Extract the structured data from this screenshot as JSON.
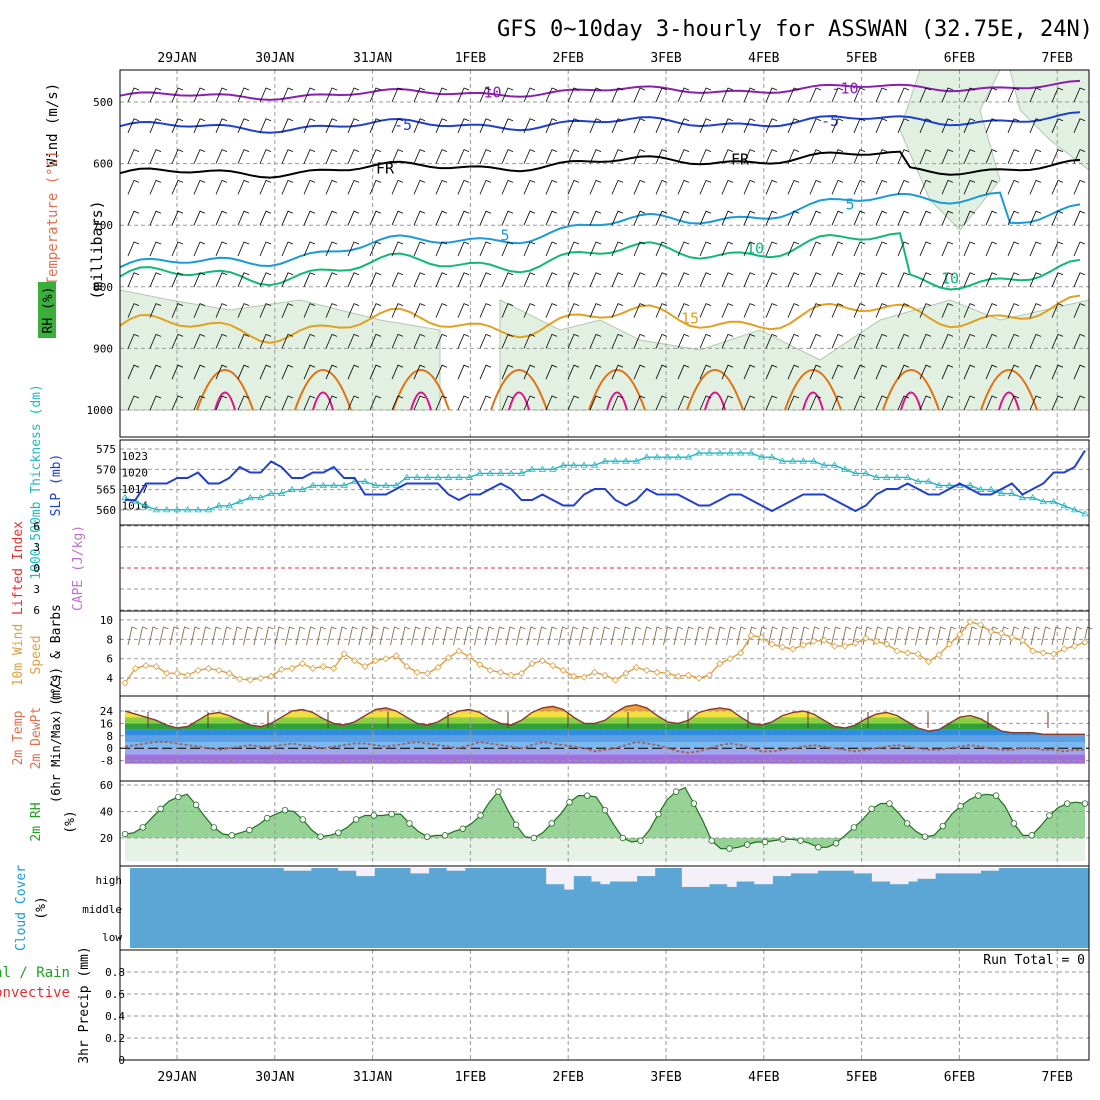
{
  "title": "GFS 0~10day 3-hourly for ASSWAN (32.75E, 24N)",
  "date_labels": [
    "29JAN",
    "30JAN",
    "31JAN",
    "1FEB",
    "2FEB",
    "3FEB",
    "4FEB",
    "5FEB",
    "6FEB",
    "7FEB"
  ],
  "colors": {
    "t_minus10": "#8a1fb0",
    "t_minus5": "#1f3fd0",
    "t_fr": "#000000",
    "t_5": "#1a9ad8",
    "t_10": "#10b878",
    "t_15": "#e0a020",
    "t_20": "#e07010",
    "t_25": "#e0108a",
    "rh_fill": "#e2f0e2",
    "slp": "#1f3fd0",
    "thickness": "#20b8c8",
    "lifted_index": "#e03030",
    "cape": "#c070d0",
    "wind_speed": "#e0a040",
    "wind_barb": "#8a6a4a",
    "temp_fill": "#e0a020",
    "dewpoint": "#a06060",
    "rh_line": "#20a020",
    "cloud": "#5ba6d4",
    "precip_total": "#20a020",
    "precip_conv": "#e03030"
  },
  "panels": {
    "upper": {
      "ylabel_main": "(millibars)",
      "ylabel_wind": "Wind (m/s)",
      "ylabel_temp": "Temperature (°C)",
      "ylabel_rh": "RH (%)",
      "contour_labels": {
        "minus10": "-10",
        "minus5": "-5",
        "fr": "FR",
        "plus5": "5",
        "plus10": "10",
        "plus15": "15"
      },
      "yticks": [
        "500",
        "600",
        "700",
        "800",
        "900",
        "1000"
      ]
    },
    "slp": {
      "ylabel_thick": "1000-500mb Thickness (dm)",
      "ylabel_slp": "SLP (mb)",
      "left_ticks": [
        "575",
        "570",
        "565",
        "560"
      ],
      "right_ticks": [
        "1023",
        "1020",
        "1017",
        "1014"
      ]
    },
    "cape": {
      "ylabel_li": "Lifted Index",
      "ylabel_cape": "CAPE (J/kg)",
      "ticks": [
        "6",
        "3",
        "0",
        "3",
        "6"
      ]
    },
    "wind10": {
      "ylabel_a": "10m Wind",
      "ylabel_b": "Speed",
      "ylabel_c": "(m/s) & Barbs",
      "ticks": [
        "10",
        "8",
        "6",
        "4"
      ]
    },
    "temp": {
      "ylabel_a": "2m Temp",
      "ylabel_b": "2m DewPt",
      "ylabel_c": "(6hr Min/Max) (°C)",
      "ticks": [
        "24",
        "16",
        "8",
        "0",
        "-8"
      ]
    },
    "rh": {
      "ylabel_a": "2m RH",
      "ylabel_b": "(%)",
      "ticks": [
        "60",
        "40",
        "20"
      ]
    },
    "cloud": {
      "ylabel_a": "Cloud Cover",
      "ylabel_b": "(%)",
      "levels": [
        "high",
        "middle",
        "low"
      ]
    },
    "precip": {
      "ylabel_total": "Total / Rain",
      "ylabel_conv": "Convective",
      "ylabel_mm": "3hr Precip (mm)",
      "run_total": "Run Total = 0",
      "ticks": [
        "0.8",
        "0.6",
        "0.4",
        "0.2",
        "0"
      ]
    }
  },
  "chart_data": [
    {
      "type": "line",
      "title": "SLP (mb) and 1000-500mb Thickness (dm)",
      "series": [
        {
          "name": "SLP (mb)",
          "values": [
            1015,
            1015,
            1018,
            1018,
            1018,
            1019,
            1019,
            1020,
            1018,
            1018,
            1019,
            1021,
            1020,
            1020,
            1022,
            1021,
            1019,
            1019,
            1020,
            1020,
            1021,
            1019,
            1019,
            1016,
            1016,
            1016,
            1017,
            1018,
            1018,
            1018,
            1018,
            1016,
            1015,
            1016,
            1016,
            1017,
            1018,
            1017,
            1015,
            1015,
            1016,
            1015,
            1014,
            1014,
            1016,
            1017,
            1017,
            1015,
            1014,
            1015,
            1017,
            1016,
            1016,
            1016,
            1015,
            1014,
            1014,
            1015,
            1016,
            1016,
            1015,
            1014,
            1013,
            1014,
            1015,
            1016,
            1016,
            1016,
            1015,
            1014,
            1013,
            1014,
            1016,
            1017,
            1017,
            1018,
            1017,
            1016,
            1016,
            1017,
            1018,
            1017,
            1016,
            1016,
            1017,
            1018,
            1016,
            1017,
            1018,
            1020,
            1020,
            1021,
            1024
          ]
        },
        {
          "name": "1000-500mb Thickness (dm)",
          "values": [
            563,
            562,
            561,
            560,
            560,
            560,
            560,
            560,
            560,
            561,
            561,
            562,
            563,
            563,
            564,
            564,
            565,
            565,
            566,
            566,
            566,
            566,
            567,
            567,
            566,
            566,
            566,
            568,
            568,
            568,
            568,
            568,
            568,
            568,
            569,
            569,
            569,
            569,
            569,
            570,
            570,
            570,
            571,
            571,
            571,
            571,
            572,
            572,
            572,
            572,
            573,
            573,
            573,
            573,
            573,
            574,
            574,
            574,
            574,
            574,
            574,
            573,
            573,
            572,
            572,
            572,
            572,
            571,
            571,
            570,
            569,
            569,
            568,
            568,
            568,
            568,
            567,
            567,
            566,
            566,
            566,
            566,
            565,
            565,
            564,
            564,
            563,
            563,
            562,
            562,
            561,
            560,
            559
          ]
        }
      ],
      "left_range": [
        557,
        576
      ],
      "right_range": [
        1011,
        1025
      ]
    },
    {
      "type": "line",
      "title": "Lifted Index / CAPE",
      "series": [
        {
          "name": "Lifted Index",
          "values": []
        }
      ],
      "ylim": [
        -6,
        6
      ]
    },
    {
      "type": "line",
      "title": "10m Wind Speed (m/s)",
      "series": [
        {
          "name": "10m Wind Speed (m/s)",
          "values": [
            3.5,
            5,
            5.3,
            5.2,
            4.5,
            4.5,
            4.3,
            4.8,
            5,
            4.8,
            4.5,
            3.9,
            3.8,
            4,
            4.2,
            4.9,
            5,
            5.5,
            5,
            5.2,
            5,
            6.5,
            5.8,
            5.2,
            5.8,
            6,
            6.3,
            5.2,
            4.6,
            4.5,
            5.1,
            6.1,
            6.8,
            6.2,
            5.4,
            4.8,
            4.6,
            4.3,
            4.5,
            5.5,
            5.8,
            5.3,
            4.8,
            4.2,
            4.1,
            4.6,
            4.3,
            3.8,
            4.5,
            5.1,
            4.8,
            4.6,
            4.5,
            4.2,
            4.3,
            4,
            4.3,
            5.5,
            6,
            6.6,
            8.4,
            8.2,
            7.5,
            7.2,
            7,
            7.4,
            7.8,
            7.9,
            7.3,
            7.3,
            7.6,
            8.1,
            7.8,
            7.5,
            6.8,
            6.6,
            6.5,
            5.7,
            6.4,
            7.5,
            8.5,
            9.8,
            9.5,
            8.8,
            8.6,
            8.2,
            7.9,
            6.8,
            6.6,
            6.5,
            7,
            7.3,
            7.7
          ]
        }
      ],
      "ylim": [
        3,
        11
      ]
    },
    {
      "type": "area",
      "title": "2m Temp / 2m DewPt (°C)",
      "series": [
        {
          "name": "2m Temp (°C)",
          "values": [
            24,
            22,
            20,
            18,
            15,
            13,
            14,
            18,
            22,
            23,
            21,
            18,
            15,
            14,
            16,
            20,
            24,
            25,
            23,
            19,
            16,
            15,
            17,
            21,
            25,
            26,
            24,
            20,
            16,
            15,
            17,
            21,
            24,
            25,
            23,
            19,
            16,
            15,
            18,
            23,
            26,
            27,
            25,
            20,
            16,
            16,
            18,
            23,
            27,
            28,
            26,
            21,
            17,
            16,
            18,
            23,
            25,
            26,
            25,
            20,
            16,
            15,
            17,
            21,
            23,
            24,
            22,
            18,
            14,
            13,
            15,
            19,
            22,
            23,
            21,
            17,
            13,
            11,
            12,
            16,
            20,
            21,
            19,
            15,
            11,
            10,
            10,
            10,
            9,
            9,
            9,
            9,
            9
          ]
        },
        {
          "name": "2m DewPt (°C)",
          "values": [
            1,
            2,
            3,
            4,
            4,
            3,
            2,
            1,
            0,
            -1,
            0,
            1,
            2,
            1,
            1,
            2,
            3,
            2,
            1,
            0,
            1,
            2,
            3,
            3,
            2,
            1,
            2,
            3,
            4,
            3,
            2,
            1,
            0,
            2,
            4,
            3,
            2,
            1,
            0,
            2,
            4,
            3,
            2,
            1,
            0,
            -2,
            -1,
            0,
            2,
            4,
            3,
            2,
            0,
            -2,
            -3,
            -2,
            0,
            2,
            3,
            2,
            0,
            -2,
            -2,
            -1,
            0,
            1,
            2,
            1,
            0,
            -1,
            -2,
            -1,
            0,
            1,
            2,
            1,
            0,
            -1,
            -1,
            0,
            1,
            2,
            1,
            0,
            -1,
            -1,
            0,
            0,
            -1,
            -1,
            -2,
            -1,
            -1
          ]
        }
      ],
      "ylim": [
        -10,
        30
      ]
    },
    {
      "type": "area",
      "title": "2m RH (%)",
      "series": [
        {
          "name": "2m RH (%)",
          "values": [
            23,
            24,
            28,
            35,
            42,
            48,
            51,
            53,
            45,
            36,
            28,
            23,
            22,
            24,
            26,
            30,
            35,
            38,
            41,
            40,
            34,
            26,
            21,
            22,
            24,
            28,
            34,
            37,
            37,
            37,
            38,
            38,
            31,
            25,
            21,
            22,
            22,
            25,
            27,
            31,
            37,
            47,
            55,
            42,
            30,
            21,
            20,
            24,
            31,
            38,
            47,
            52,
            52,
            51,
            41,
            30,
            20,
            17,
            18,
            26,
            38,
            49,
            55,
            58,
            46,
            33,
            18,
            12,
            12,
            13,
            15,
            17,
            17,
            18,
            19,
            19,
            18,
            16,
            13,
            13,
            16,
            22,
            28,
            34,
            42,
            46,
            46,
            39,
            31,
            25,
            21,
            22,
            29,
            38,
            44,
            49,
            52,
            53,
            52,
            44,
            31,
            22,
            22,
            29,
            37,
            43,
            46,
            47,
            46
          ]
        }
      ],
      "ylim": [
        5,
        62
      ]
    },
    {
      "type": "bar",
      "title": "Cloud Cover (%) - high level",
      "series": [
        {
          "name": "high",
          "values": [
            0,
            0,
            0,
            0,
            0,
            0,
            0,
            0,
            0,
            0,
            0,
            0,
            0,
            0,
            0,
            0,
            0,
            1,
            1,
            1,
            0,
            0,
            0,
            1,
            1,
            3,
            3,
            0,
            0,
            0,
            0,
            2,
            2,
            0,
            0,
            1,
            1,
            0,
            0,
            0,
            0,
            0,
            0,
            0,
            0,
            0,
            6,
            6,
            8,
            3,
            3,
            5,
            6,
            5,
            5,
            5,
            3,
            3,
            0,
            0,
            0,
            7,
            7,
            7,
            6,
            6,
            7,
            5,
            5,
            6,
            6,
            3,
            3,
            2,
            2,
            2,
            1,
            1,
            1,
            1,
            2,
            2,
            5,
            5,
            6,
            6,
            5,
            4,
            4,
            2,
            2,
            2,
            2,
            2,
            1,
            1,
            0,
            0,
            0,
            0,
            0,
            0,
            0,
            0,
            0,
            0
          ]
        }
      ],
      "ylim": [
        0,
        10
      ]
    },
    {
      "type": "bar",
      "title": "3hr Precip (mm)",
      "series": [
        {
          "name": "Total / Rain",
          "values": []
        },
        {
          "name": "Convective",
          "values": []
        }
      ],
      "ylim": [
        0,
        1
      ]
    }
  ]
}
